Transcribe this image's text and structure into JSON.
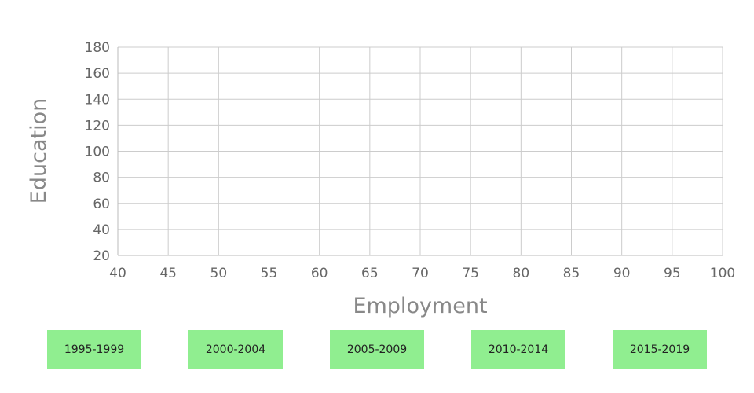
{
  "chart_data": {
    "type": "scatter",
    "title": "",
    "xlabel": "Employment",
    "ylabel": "Education",
    "xlim": [
      40,
      100
    ],
    "ylim": [
      20,
      180
    ],
    "x_ticks": [
      40,
      45,
      50,
      55,
      60,
      65,
      70,
      75,
      80,
      85,
      90,
      95,
      100
    ],
    "y_ticks": [
      20,
      40,
      60,
      80,
      100,
      120,
      140,
      160,
      180
    ],
    "grid": true,
    "series": [],
    "colors": {
      "grid": "#cccccc",
      "tick_text": "#666666",
      "axis_title": "#888888"
    }
  },
  "controls": {
    "period_buttons": [
      "1995-1999",
      "2000-2004",
      "2005-2009",
      "2010-2014",
      "2015-2019"
    ],
    "button_color": "#90ee90"
  }
}
